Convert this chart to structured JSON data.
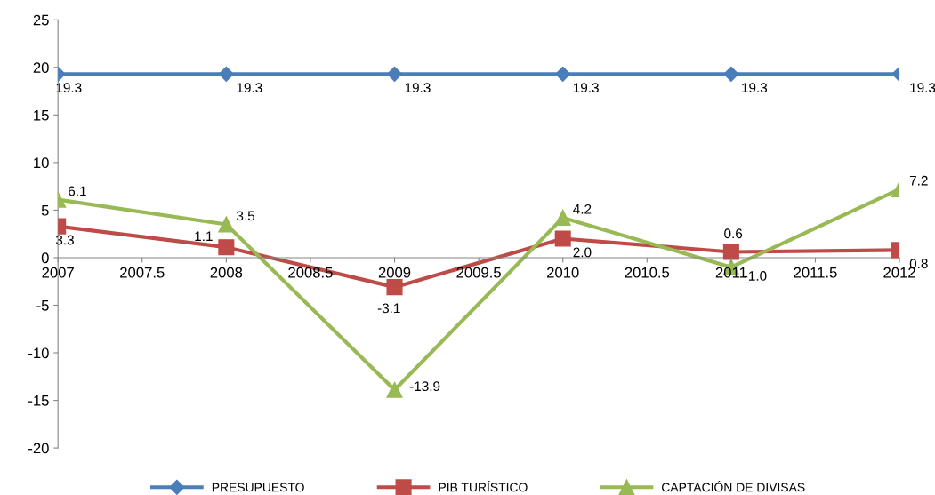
{
  "chart_data": {
    "type": "line",
    "x": [
      2007,
      2008,
      2009,
      2010,
      2011,
      2012
    ],
    "series": [
      {
        "name": "PRESUPUESTO",
        "color": "#4a7ebb",
        "marker": "diamond",
        "values": [
          19.3,
          19.3,
          19.3,
          19.3,
          19.3,
          19.3
        ],
        "value_labels": [
          "19.3",
          "19.3",
          "19.3",
          "19.3",
          "19.3",
          "19.3"
        ]
      },
      {
        "name": "PIB TURÍSTICO",
        "color": "#be4b48",
        "marker": "square",
        "values": [
          3.3,
          1.1,
          -3.1,
          2.0,
          0.6,
          0.8
        ],
        "value_labels": [
          "3.3",
          "1.1",
          "-3.1",
          "2.0",
          "0.6",
          "0.8"
        ]
      },
      {
        "name": "CAPTACIÓN DE DIVISAS",
        "color": "#98b954",
        "marker": "triangle",
        "values": [
          6.1,
          3.5,
          -13.9,
          4.2,
          -1.0,
          7.2
        ],
        "value_labels": [
          "6.1",
          "3.5",
          "-13.9",
          "4.2",
          "-1.0",
          "7.2"
        ]
      }
    ],
    "xlim": [
      2007,
      2012
    ],
    "xticks": [
      2007,
      2007.5,
      2008,
      2008.5,
      2009,
      2009.5,
      2010,
      2010.5,
      2011,
      2011.5,
      2012
    ],
    "ylim": [
      -20,
      25
    ],
    "yticks": [
      -20,
      -15,
      -10,
      -5,
      0,
      5,
      10,
      15,
      20,
      25
    ],
    "grid": false,
    "legend": "bottom"
  }
}
